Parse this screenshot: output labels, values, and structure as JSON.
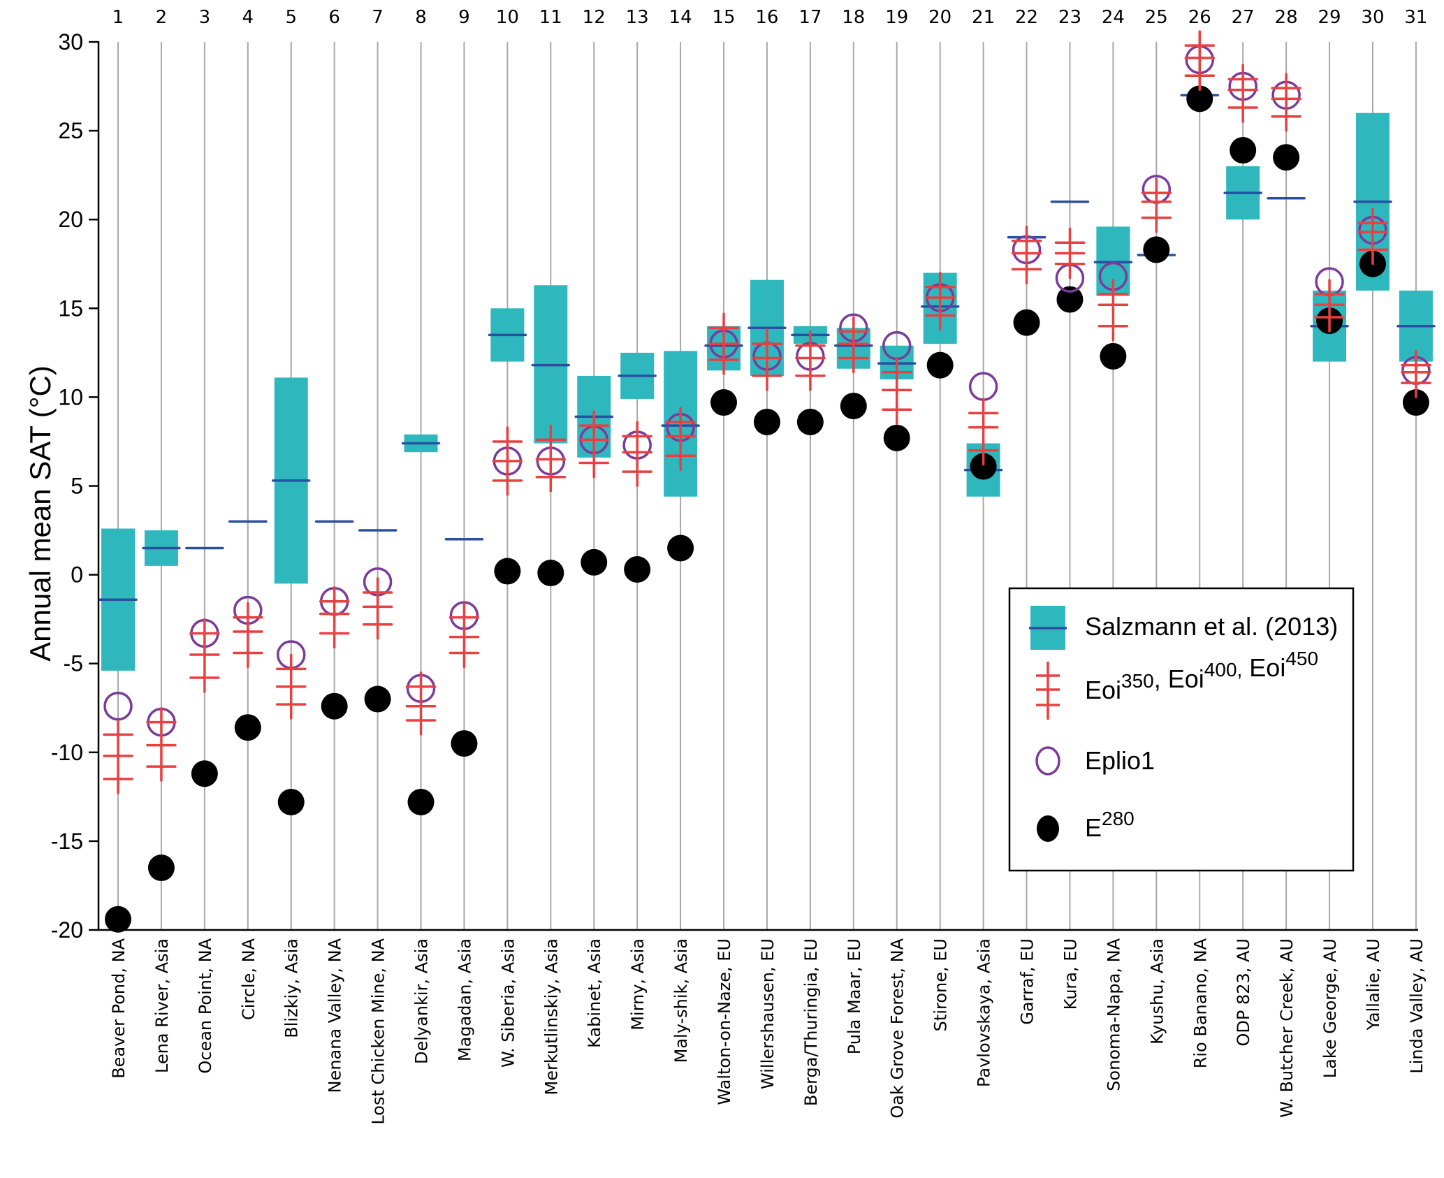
{
  "chart_data": {
    "type": "scatter",
    "title": "",
    "xlabel": "",
    "ylabel": "Annual mean SAT (°C)",
    "ylim": [
      -20,
      30
    ],
    "yticks": [
      30,
      25,
      20,
      15,
      10,
      5,
      0,
      -5,
      -10,
      -15,
      -20
    ],
    "grid": "vertical lines at each site",
    "legend_position": "bottom-right",
    "site_numbers": [
      "1",
      "2",
      "3",
      "4",
      "5",
      "6",
      "7",
      "8",
      "9",
      "10",
      "11",
      "12",
      "13",
      "14",
      "15",
      "16",
      "17",
      "18",
      "19",
      "20",
      "21",
      "22",
      "23",
      "24",
      "25",
      "26",
      "27",
      "28",
      "29",
      "30",
      "31"
    ],
    "categories": [
      "Beaver Pond, NA",
      "Lena River, Asia",
      "Ocean Point, NA",
      "Circle, NA",
      "Blizkiy, Asia",
      "Nenana Valley, NA",
      "Lost Chicken Mine, NA",
      "Delyankir, Asia",
      "Magadan, Asia",
      "W. Siberia, Asia",
      "Merkutlinskiy, Asia",
      "Kabinet, Asia",
      "Mirny, Asia",
      "Maly-shik, Asia",
      "Walton-on-Naze, EU",
      "Willershausen, EU",
      "Berga/Thuringia, EU",
      "Pula Maar, EU",
      "Oak Grove Forest, NA",
      "Stirone, EU",
      "Pavlovskaya, Asia",
      "Garraf, EU",
      "Kura, EU",
      "Sonoma-Napa, NA",
      "Kyushu, Asia",
      "Rio Banano, NA",
      "ODP 823, AU",
      "W. Butcher Creek, AU",
      "Lake George, AU",
      "Yallalie, AU",
      "Linda Valley, AU"
    ],
    "series": [
      {
        "name": "Salzmann et al. (2013)",
        "kind": "range-box-with-mean",
        "colors": {
          "box": "#2eb8bd",
          "mean": "#2a4fa0"
        },
        "low": [
          -5.4,
          0.5,
          null,
          null,
          -0.5,
          null,
          null,
          6.9,
          null,
          12.0,
          7.4,
          6.6,
          9.9,
          4.4,
          11.5,
          11.2,
          13.0,
          11.6,
          11.0,
          13.0,
          4.4,
          null,
          null,
          15.7,
          null,
          null,
          20.0,
          null,
          12.0,
          16.0,
          12.0
        ],
        "high": [
          2.6,
          2.5,
          null,
          null,
          11.1,
          null,
          null,
          7.9,
          null,
          15.0,
          16.3,
          11.2,
          12.5,
          12.6,
          14.0,
          16.6,
          14.0,
          13.9,
          12.9,
          17.0,
          7.4,
          null,
          null,
          19.6,
          null,
          null,
          23.0,
          null,
          16.0,
          26.0,
          16.0
        ],
        "mean": [
          -1.4,
          1.5,
          1.5,
          3.0,
          5.3,
          3.0,
          2.5,
          7.4,
          2.0,
          13.5,
          11.8,
          8.9,
          11.2,
          8.4,
          12.9,
          13.9,
          13.5,
          12.9,
          11.9,
          15.1,
          5.9,
          19.0,
          21.0,
          17.6,
          18.0,
          27.0,
          21.5,
          21.2,
          14.0,
          21.0,
          14.0
        ]
      },
      {
        "name": "Eoi350, Eoi400, Eoi450",
        "kind": "triple-cross",
        "color": "#e84040",
        "values": [
          [
            -9.0,
            -10.2,
            -11.5
          ],
          [
            -8.3,
            -9.6,
            -10.8
          ],
          [
            -3.3,
            -4.5,
            -5.8
          ],
          [
            -2.4,
            -3.2,
            -4.4
          ],
          [
            -5.3,
            -6.3,
            -7.3
          ],
          [
            -1.5,
            -2.2,
            -3.3
          ],
          [
            -1.0,
            -1.8,
            -2.8
          ],
          [
            -6.3,
            -7.4,
            -8.2
          ],
          [
            -2.4,
            -3.5,
            -4.4
          ],
          [
            7.5,
            6.4,
            5.3
          ],
          [
            7.6,
            6.5,
            5.5
          ],
          [
            8.4,
            7.6,
            6.3
          ],
          [
            7.8,
            6.9,
            5.8
          ],
          [
            8.6,
            7.8,
            6.7
          ],
          [
            13.9,
            13.0,
            12.1
          ],
          [
            13.0,
            12.2,
            11.2
          ],
          [
            12.9,
            12.2,
            11.2
          ],
          [
            13.7,
            13.0,
            12.2
          ],
          [
            11.4,
            10.4,
            9.3
          ],
          [
            16.2,
            15.6,
            14.6
          ],
          [
            9.1,
            8.3,
            7.0
          ],
          [
            18.8,
            18.1,
            17.2
          ],
          [
            18.7,
            18.1,
            17.5
          ],
          [
            15.8,
            15.2,
            14.0
          ],
          [
            21.5,
            21.0,
            20.1
          ],
          [
            29.8,
            29.1,
            28.1
          ],
          [
            27.9,
            27.3,
            26.3
          ],
          [
            27.4,
            26.8,
            25.8
          ],
          [
            15.8,
            15.2,
            14.5
          ],
          [
            19.8,
            19.3,
            18.3
          ],
          [
            11.8,
            11.4,
            10.8
          ]
        ]
      },
      {
        "name": "Eplio1",
        "kind": "open-circle",
        "color": "#7a3b9a",
        "values": [
          -7.4,
          -8.3,
          -3.3,
          -2.0,
          -4.5,
          -1.5,
          -0.4,
          -6.4,
          -2.3,
          6.4,
          6.4,
          7.6,
          7.3,
          8.3,
          13.0,
          12.3,
          12.3,
          13.9,
          12.9,
          15.6,
          10.6,
          18.3,
          16.7,
          16.8,
          21.7,
          29.0,
          27.5,
          27.0,
          16.5,
          19.4,
          11.5
        ]
      },
      {
        "name": "E280",
        "kind": "filled-circle",
        "color": "#000000",
        "values": [
          -19.4,
          -16.5,
          -11.2,
          -8.6,
          -12.8,
          -7.4,
          -7.0,
          -12.8,
          -9.5,
          0.2,
          0.1,
          0.7,
          0.3,
          1.5,
          9.7,
          8.6,
          8.6,
          9.5,
          7.7,
          11.8,
          6.1,
          14.2,
          15.5,
          12.3,
          18.3,
          26.8,
          23.9,
          23.5,
          14.3,
          17.5,
          9.7
        ]
      }
    ],
    "legend": [
      {
        "key": "salzmann",
        "text": "Salzmann et al. (2013)"
      },
      {
        "key": "eoi",
        "parts": [
          {
            "t": "Eoi",
            "sup": "350"
          },
          {
            "t": ", Eoi",
            "sup": "400,"
          },
          {
            "t": " Eoi",
            "sup": "450"
          }
        ]
      },
      {
        "key": "eplio",
        "text": "Eplio1"
      },
      {
        "key": "e280",
        "parts": [
          {
            "t": "E",
            "sup": "280"
          }
        ]
      }
    ],
    "colors": {
      "axis": "#000000",
      "gridline": "#a8a8a8",
      "box": "#2eb8bd",
      "mean": "#2a4fa0",
      "eoi": "#e84040",
      "eplio": "#7a3b9a",
      "e280": "#000000"
    }
  }
}
